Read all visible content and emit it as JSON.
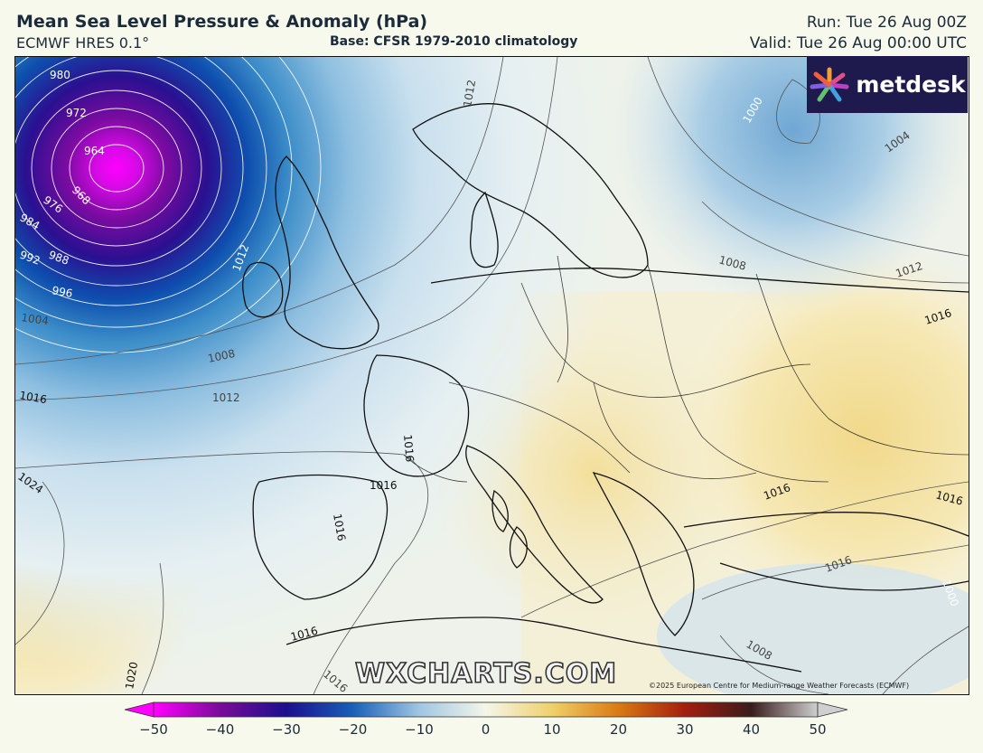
{
  "header": {
    "title": "Mean Sea Level Pressure & Anomaly (hPa)",
    "model": "ECMWF HRES 0.1°",
    "base": "Base: CFSR 1979-2010 climatology",
    "run": "Run: Tue 26 Aug 00Z",
    "valid": "Valid: Tue 26 Aug 00:00 UTC"
  },
  "logo": {
    "text": "metdesk",
    "icon": "flower-logo-icon"
  },
  "watermark": "WXCHARTS.COM",
  "copyright": "©2025 European Centre for Medium-range Weather Forecasts (ECMWF)",
  "colorbar": {
    "min": -50,
    "max": 50,
    "ticks": [
      "−50",
      "−40",
      "−30",
      "−20",
      "−10",
      "0",
      "10",
      "20",
      "30",
      "40",
      "50"
    ],
    "colors": [
      "#ff00ff",
      "#7a0b9a",
      "#1b0f8e",
      "#1a5fb8",
      "#9fc6e2",
      "#f4f6ea",
      "#f0d06a",
      "#d97a12",
      "#a41e0f",
      "#3a1c1c",
      "#cfcfcf"
    ]
  },
  "map": {
    "low_center_label": "964",
    "isobar_labels": [
      "980",
      "972",
      "964",
      "968",
      "976",
      "984",
      "988",
      "992",
      "996",
      "1004",
      "1008",
      "1012",
      "1016",
      "1024",
      "1020",
      "1000",
      "1004",
      "1008",
      "1012",
      "1016",
      "1016",
      "1016",
      "1012",
      "1012",
      "1016",
      "1016",
      "1016",
      "1016",
      "1016",
      "1008",
      "1016",
      "1000"
    ]
  }
}
